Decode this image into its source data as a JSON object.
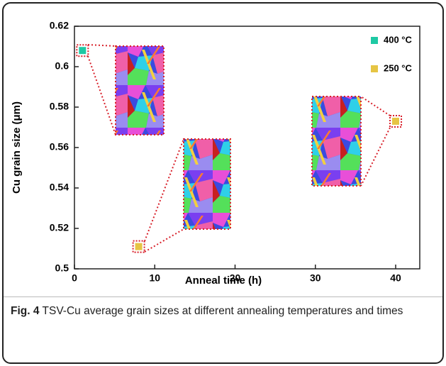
{
  "chart_data": {
    "type": "scatter",
    "xlabel": "Anneal time (h)",
    "ylabel": "Cu grain size (μm)",
    "xlim": [
      0,
      43
    ],
    "xticks": [
      0,
      10,
      20,
      30,
      40
    ],
    "ylim": [
      0.5,
      0.62
    ],
    "yticks": [
      0.5,
      0.52,
      0.54,
      0.56,
      0.58,
      0.6,
      0.62
    ],
    "legend": "upper right",
    "series": [
      {
        "name": "400 °C",
        "color": "#1ec9a4",
        "x": [
          1
        ],
        "values": [
          0.608
        ]
      },
      {
        "name": "250 °C",
        "color": "#e6c544",
        "x": [
          8,
          40
        ],
        "values": [
          0.511,
          0.573
        ]
      }
    ],
    "caption_label": "Fig. 4",
    "caption": "TSV-Cu average grain sizes at different annealing temperatures and times"
  }
}
